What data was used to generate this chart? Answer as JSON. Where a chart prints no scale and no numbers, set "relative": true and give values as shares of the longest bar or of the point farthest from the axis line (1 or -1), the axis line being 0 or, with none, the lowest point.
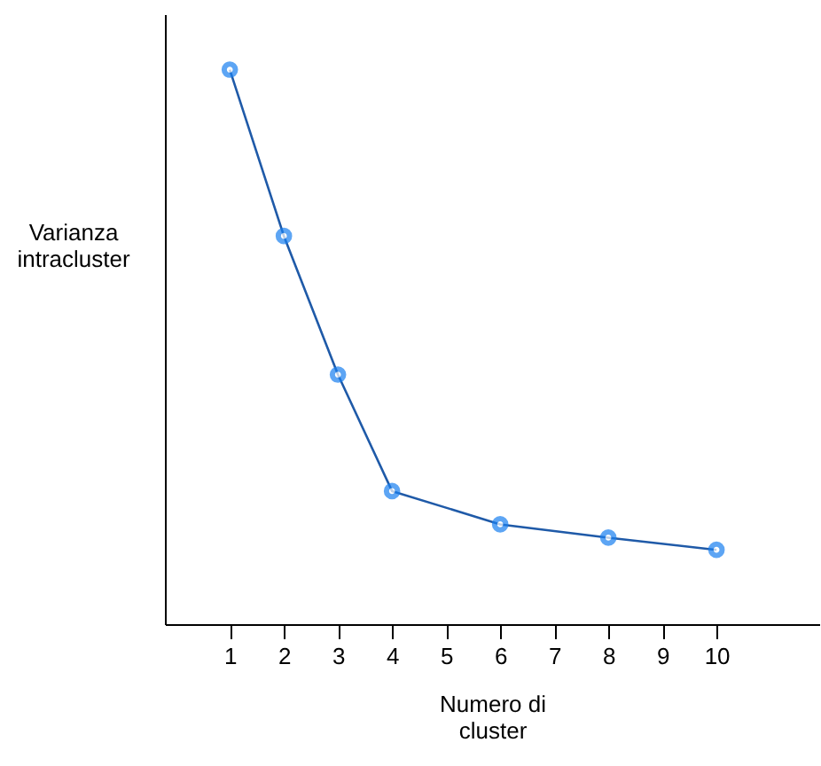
{
  "chart_data": {
    "type": "line",
    "relative": true,
    "xlabel": "Numero di\ncluster",
    "ylabel": "Varianza\nintracluster",
    "x": [
      1,
      2,
      3,
      4,
      6,
      8,
      10
    ],
    "series": [
      {
        "color": "#1f5aa8",
        "values": [
          1,
          0.7,
          0.45,
          0.24,
          0.18,
          0.156,
          0.134
        ]
      }
    ],
    "xlim": [
      -0.2,
      11.9
    ],
    "xticks": [
      1,
      2,
      3,
      4,
      5,
      6,
      7,
      8,
      9,
      10
    ],
    "marker": "circle",
    "line_style": "solid",
    "grid": false
  }
}
